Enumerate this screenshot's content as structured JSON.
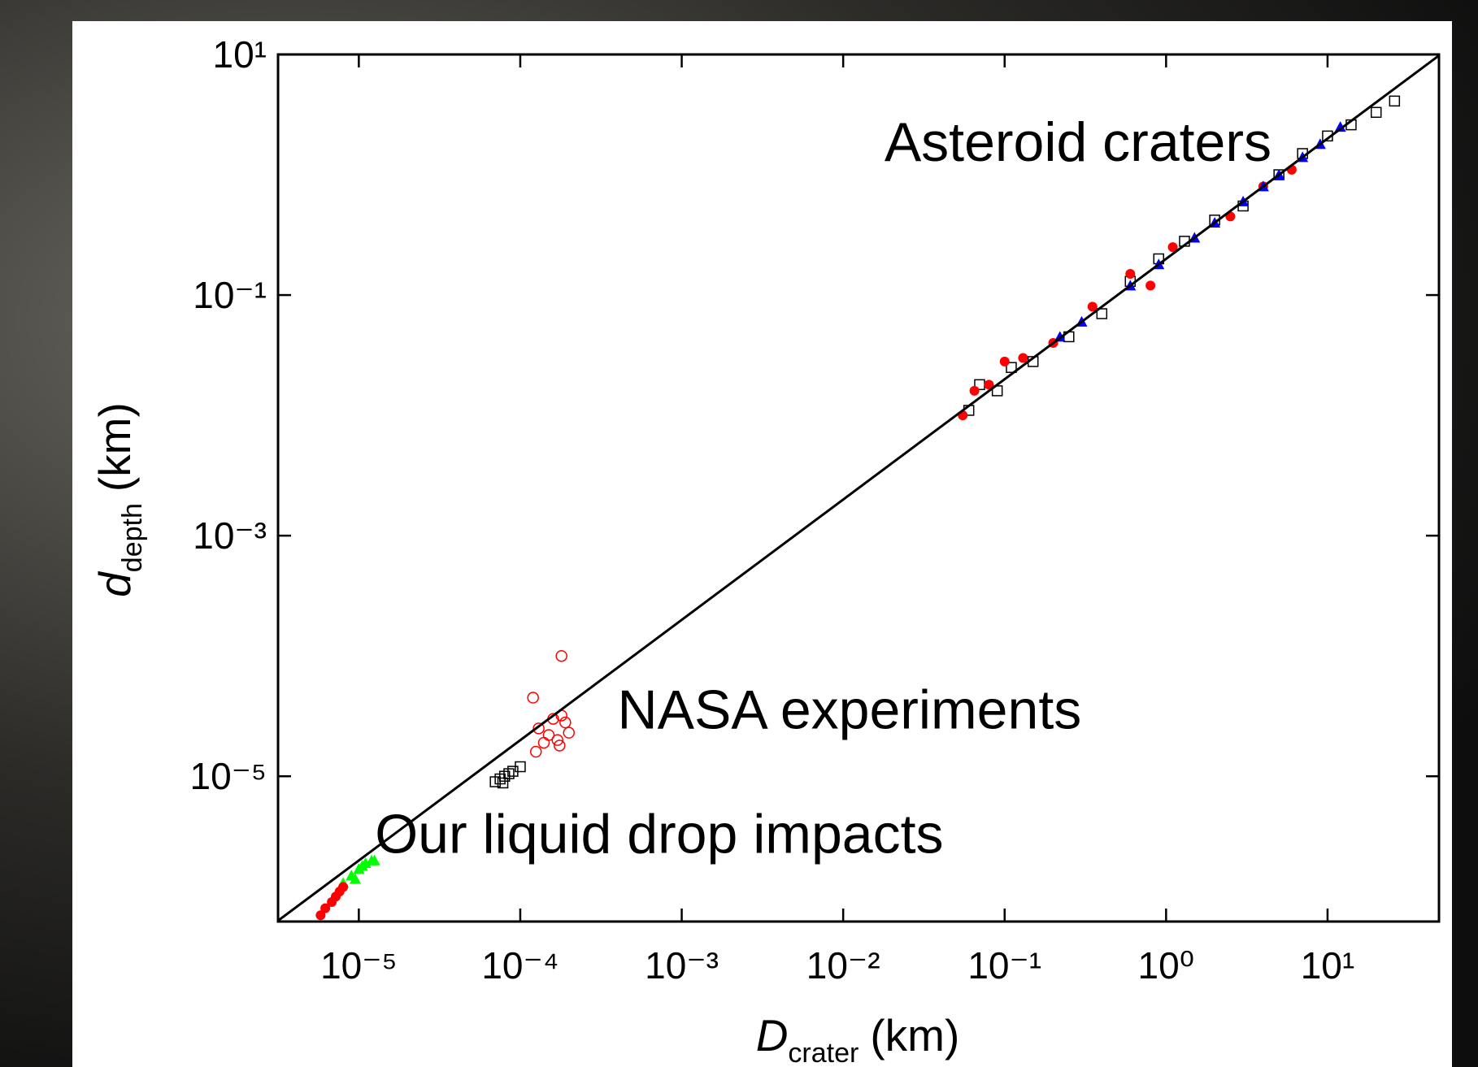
{
  "chart_data": {
    "type": "scatter",
    "x_label": {
      "symbol": "D",
      "subscript": "crater",
      "unit": "(km)"
    },
    "y_label": {
      "symbol": "d",
      "subscript": "depth",
      "unit": "(km)"
    },
    "log_x": true,
    "log_y": true,
    "xlim": [
      3.16e-06,
      49
    ],
    "ylim": [
      6.2e-07,
      10
    ],
    "xticks": [
      {
        "value": 1e-05,
        "label": "10⁻⁵"
      },
      {
        "value": 0.0001,
        "label": "10⁻⁴"
      },
      {
        "value": 0.001,
        "label": "10⁻³"
      },
      {
        "value": 0.01,
        "label": "10⁻²"
      },
      {
        "value": 0.1,
        "label": "10⁻¹"
      },
      {
        "value": 1,
        "label": "10⁰"
      },
      {
        "value": 10,
        "label": "10¹"
      }
    ],
    "yticks": [
      {
        "value": 10,
        "label": "10¹"
      },
      {
        "value": 0.1,
        "label": "10⁻¹"
      },
      {
        "value": 0.001,
        "label": "10⁻³"
      },
      {
        "value": 1e-05,
        "label": "10⁻⁵"
      }
    ],
    "annotations": [
      {
        "text": "Asteroid craters",
        "x": 0.018,
        "y": 1.3
      },
      {
        "text": "NASA experiments",
        "x": 0.0004,
        "y": 2.5e-05
      },
      {
        "text": "Our liquid drop impacts",
        "x": 1.26e-05,
        "y": 2.3e-06
      }
    ],
    "series": [
      {
        "marker": "square-open",
        "color": "#000000",
        "x": [
          0.06,
          0.07,
          0.09,
          0.11,
          0.15,
          0.25,
          0.4,
          0.6,
          0.9,
          1.3,
          2,
          3,
          5,
          7,
          10,
          14,
          20,
          26
        ],
        "values": [
          0.011,
          0.018,
          0.016,
          0.025,
          0.028,
          0.045,
          0.07,
          0.13,
          0.2,
          0.28,
          0.42,
          0.55,
          1.0,
          1.5,
          2.1,
          2.6,
          3.3,
          4.1
        ]
      },
      {
        "marker": "circle",
        "color": "#ff0000",
        "x": [
          0.055,
          0.065,
          0.08,
          0.1,
          0.13,
          0.2,
          0.35,
          0.6,
          0.8,
          1.1,
          2.5,
          4,
          6
        ],
        "values": [
          0.01,
          0.016,
          0.018,
          0.028,
          0.03,
          0.04,
          0.08,
          0.15,
          0.12,
          0.25,
          0.45,
          0.8,
          1.1
        ]
      },
      {
        "marker": "triangle",
        "color": "#0000ff",
        "x": [
          0.22,
          0.3,
          0.6,
          0.9,
          1.5,
          2,
          3,
          4,
          5,
          7,
          9,
          12
        ],
        "values": [
          0.045,
          0.06,
          0.12,
          0.18,
          0.3,
          0.4,
          0.6,
          0.8,
          1.0,
          1.4,
          1.8,
          2.5
        ]
      },
      {
        "marker": "circle-open",
        "color": "#ff0000",
        "x": [
          0.00012,
          0.00018,
          0.00013,
          0.00015,
          0.00016,
          0.00017,
          0.00018,
          0.00019,
          0.0002,
          0.00014,
          0.000125,
          0.000175
        ],
        "values": [
          4.5e-05,
          0.0001,
          2.5e-05,
          2.2e-05,
          3e-05,
          2e-05,
          3.2e-05,
          2.8e-05,
          2.3e-05,
          1.9e-05,
          1.6e-05,
          1.8e-05
        ]
      },
      {
        "marker": "square-open",
        "color": "#000000",
        "x": [
          7e-05,
          7.5e-05,
          8e-05,
          8.5e-05,
          9e-05,
          0.0001,
          7.8e-05
        ],
        "values": [
          9e-06,
          9.5e-06,
          1e-05,
          1.05e-05,
          1.1e-05,
          1.2e-05,
          8.8e-06
        ]
      },
      {
        "marker": "triangle",
        "color": "#00ff00",
        "x": [
          8e-06,
          9e-06,
          1e-05,
          1.1e-05,
          1.2e-05,
          1.25e-05,
          9.5e-06,
          1.05e-05
        ],
        "values": [
          1.3e-06,
          1.5e-06,
          1.7e-06,
          1.9e-06,
          2e-06,
          2e-06,
          1.4e-06,
          1.8e-06
        ]
      },
      {
        "marker": "circle",
        "color": "#ff0000",
        "x": [
          5.8e-06,
          6.2e-06,
          6.8e-06,
          7.2e-06,
          7.6e-06,
          8e-06
        ],
        "values": [
          7e-07,
          8e-07,
          9e-07,
          1e-06,
          1.1e-06,
          1.2e-06
        ]
      },
      {
        "marker": "line",
        "color": "#000000",
        "x": [
          3.16e-06,
          49
        ],
        "values": [
          6.3e-07,
          9.8
        ]
      }
    ]
  }
}
